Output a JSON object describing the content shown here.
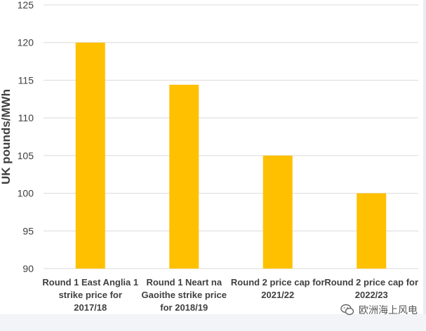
{
  "chart_data": {
    "type": "bar",
    "categories": [
      [
        "Round 1 East Anglia 1",
        "strike price for",
        "2017/18"
      ],
      [
        "Round 1 Neart na",
        "Gaoithe strike price",
        "for 2018/19"
      ],
      [
        "Round 2 price cap for",
        "2021/22"
      ],
      [
        "Round 2 price cap for",
        "2022/23"
      ]
    ],
    "values": [
      120,
      114.4,
      105,
      100
    ],
    "ylabel": "UK pounds/MWh",
    "ylim": [
      90,
      125
    ],
    "yticks": [
      90,
      95,
      100,
      105,
      110,
      115,
      120,
      125
    ],
    "grid": true,
    "bar_color": "#ffc000",
    "grid_color": "#d9d9d9"
  },
  "watermark": {
    "text": "欧洲海上风电",
    "icon": "wechat-icon"
  }
}
